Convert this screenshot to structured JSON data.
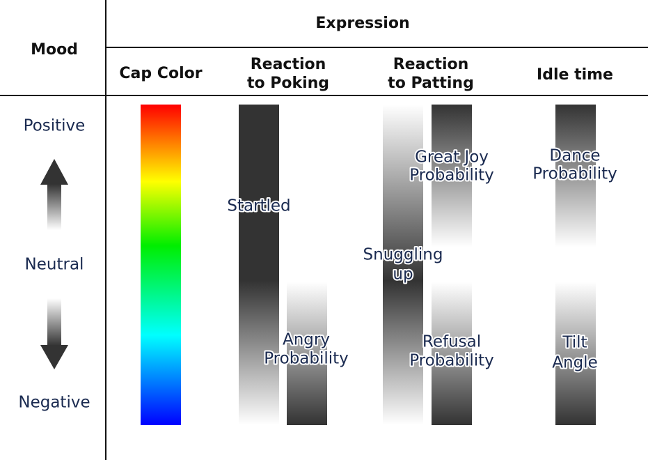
{
  "header": {
    "mood": "Mood",
    "expression": "Expression",
    "columns": [
      [
        "Cap Color"
      ],
      [
        "Reaction",
        "to Poking"
      ],
      [
        "Reaction",
        "to Patting"
      ],
      [
        "Idle time"
      ]
    ]
  },
  "moods": [
    "Positive",
    "Neutral",
    "Negative"
  ],
  "bars": {
    "poking": [
      [
        "Startled"
      ],
      [
        "Angry",
        "Probability"
      ]
    ],
    "patting": [
      [
        "Great Joy",
        "Probability"
      ],
      [
        "Snuggling",
        "up"
      ],
      [
        "Refusal",
        "Probability"
      ]
    ],
    "idle": [
      [
        "Dance",
        "Probability"
      ],
      [
        "Tilt",
        "Angle"
      ]
    ]
  }
}
